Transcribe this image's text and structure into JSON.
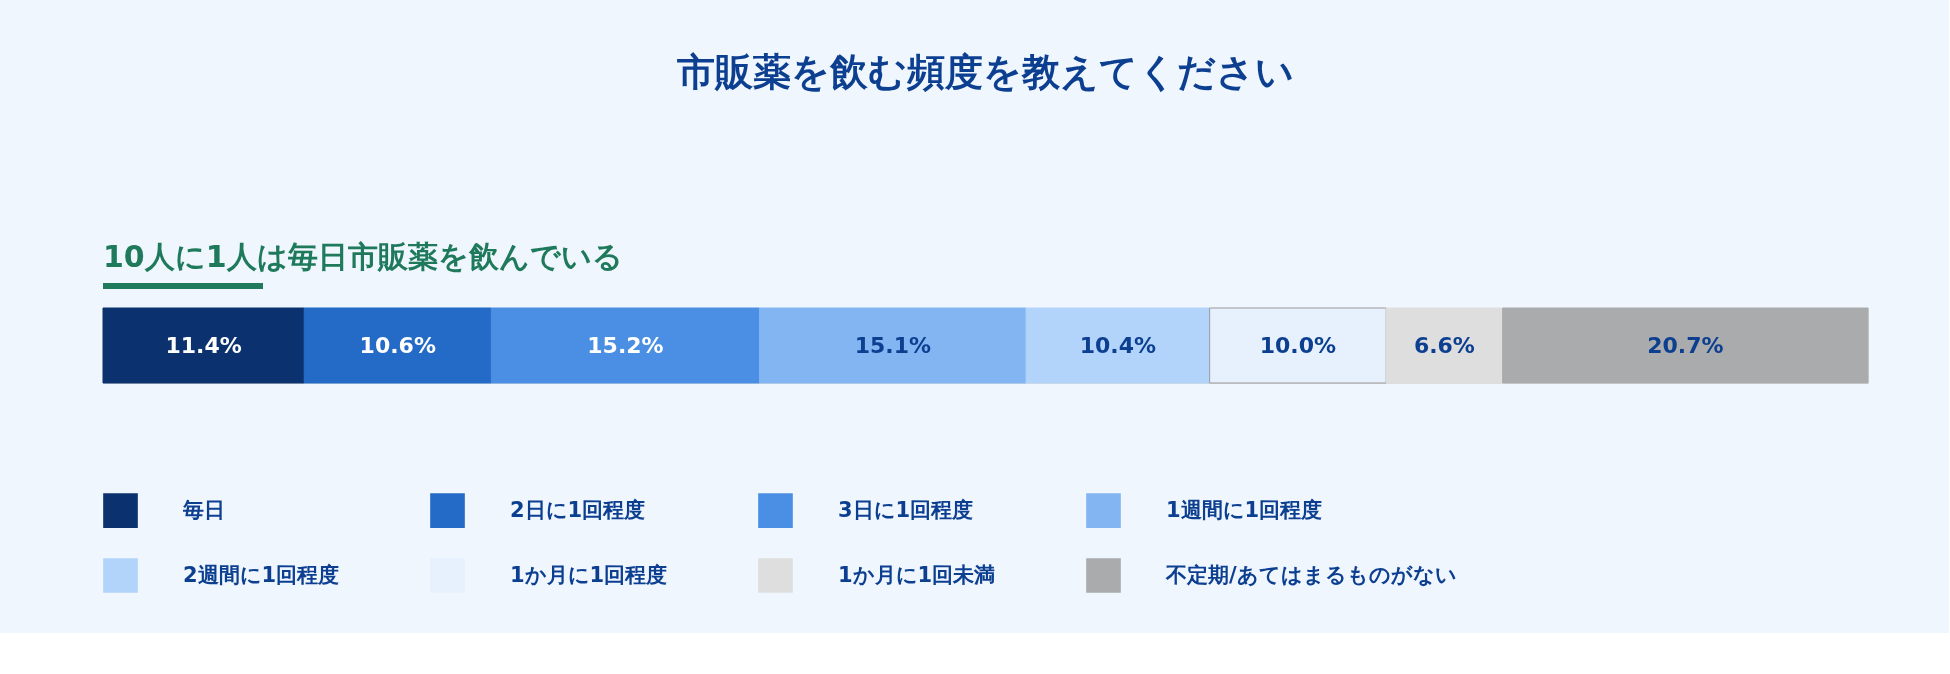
{
  "chart_data": {
    "type": "bar",
    "orientation": "horizontal",
    "stacked": true,
    "title": "市販薬を飲む頻度を教えてください",
    "subtitle": "10人に1人は毎日市販薬を飲んでいる",
    "categories": [
      null
    ],
    "legend": "bottom",
    "series": [
      {
        "name": "毎日",
        "color": "#0b326e",
        "values": [
          11.4
        ],
        "value_labels": [
          "11.4%"
        ]
      },
      {
        "name": "2日に1回程度",
        "color": "#236bc6",
        "values": [
          10.6
        ],
        "value_labels": [
          "10.6%"
        ]
      },
      {
        "name": "3日に1回程度",
        "color": "#4a8fe3",
        "values": [
          15.2
        ],
        "value_labels": [
          "15.2%"
        ]
      },
      {
        "name": "1週間に1回程度",
        "color": "#82b5f2",
        "values": [
          15.1
        ],
        "value_labels": [
          "15.1%"
        ]
      },
      {
        "name": "2週間に1回程度",
        "color": "#b2d3fa",
        "values": [
          10.4
        ],
        "value_labels": [
          "10.4%"
        ]
      },
      {
        "name": "1か月に1回程度",
        "color": "#e6f1fd",
        "values": [
          10.0
        ],
        "value_labels": [
          "10.0%"
        ]
      },
      {
        "name": "1か月に1回未満",
        "color": "#dedede",
        "values": [
          6.6
        ],
        "value_labels": [
          "6.6%"
        ]
      },
      {
        "name": "不定期/あてはまるものがない",
        "color": "#aaabad",
        "values": [
          20.7
        ],
        "value_labels": [
          "20.7%"
        ]
      }
    ]
  }
}
